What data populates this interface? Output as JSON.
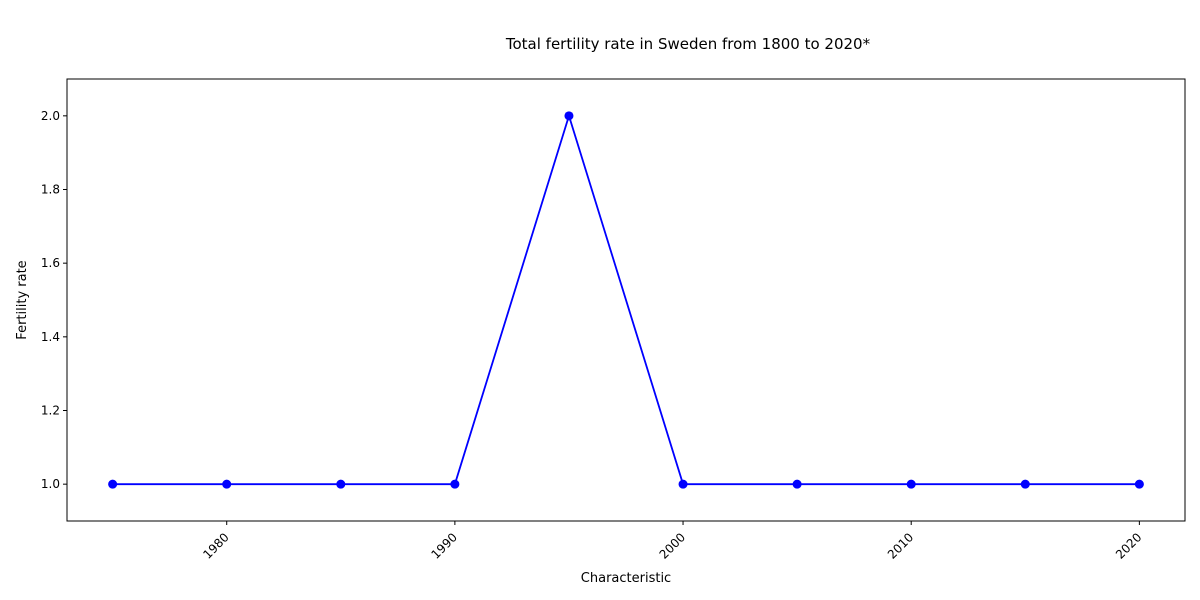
{
  "chart_data": {
    "type": "line",
    "title": "Total fertility rate in Sweden from 1800 to 2020*",
    "xlabel": "Characteristic",
    "ylabel": "Fertility rate",
    "x": [
      1975,
      1980,
      1985,
      1990,
      1995,
      2000,
      2005,
      2010,
      2015,
      2020
    ],
    "series": [
      {
        "values": [
          1,
          1,
          1,
          1,
          2,
          1,
          1,
          1,
          1,
          1
        ],
        "color": "#0000ff"
      }
    ],
    "xlim": [
      1973,
      2022
    ],
    "ylim": [
      0.9,
      2.1
    ],
    "xticks": [
      1980,
      1990,
      2000,
      2010,
      2020
    ],
    "yticks": [
      "1.0",
      "1.2",
      "1.4",
      "1.6",
      "1.8",
      "2.0"
    ],
    "grid": false,
    "legend": false,
    "marker": "circle"
  }
}
